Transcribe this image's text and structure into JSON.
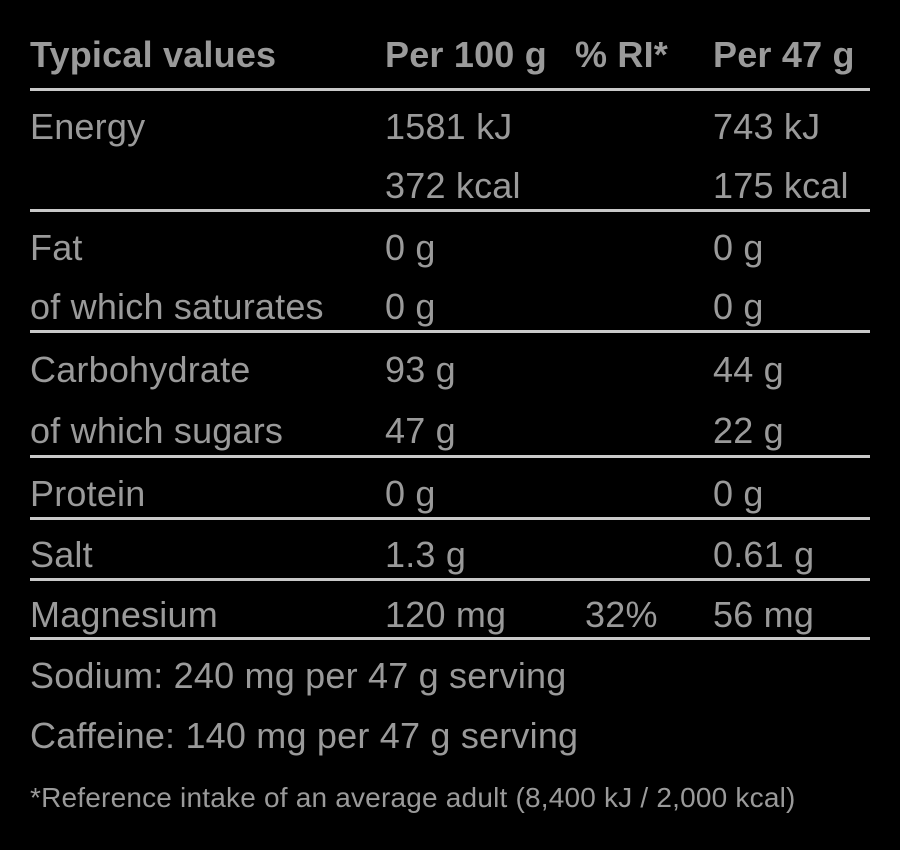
{
  "colors": {
    "background": "#000000",
    "text": "#9a9a9a",
    "rule": "#c9c9c9"
  },
  "table": {
    "header": {
      "cols": [
        "Typical values",
        "Per 100 g",
        "% RI*",
        "Per 47 g"
      ]
    },
    "rows": [
      {
        "label": "Energy",
        "per100": "1581 kJ",
        "ri": "",
        "per47": "743 kJ"
      },
      {
        "label": "",
        "per100": "372 kcal",
        "ri": "",
        "per47": "175 kcal"
      },
      {
        "label": "Fat",
        "per100": "0 g",
        "ri": "",
        "per47": "0 g"
      },
      {
        "label": "of which saturates",
        "per100": "0 g",
        "ri": "",
        "per47": "0 g"
      },
      {
        "label": "Carbohydrate",
        "per100": "93 g",
        "ri": "",
        "per47": "44 g"
      },
      {
        "label": "of which sugars",
        "per100": "47 g",
        "ri": "",
        "per47": "22 g"
      },
      {
        "label": "Protein",
        "per100": "0 g",
        "ri": "",
        "per47": "0 g"
      },
      {
        "label": "Salt",
        "per100": "1.3 g",
        "ri": "",
        "per47": "0.61 g"
      },
      {
        "label": "Magnesium",
        "per100": "120 mg",
        "ri": "32%",
        "per47": "56 mg"
      }
    ],
    "notes": [
      "Sodium: 240 mg per 47 g serving",
      "Caffeine: 140 mg per 47 g serving"
    ],
    "footnote": "*Reference intake of an average adult (8,400 kJ / 2,000 kcal)"
  }
}
